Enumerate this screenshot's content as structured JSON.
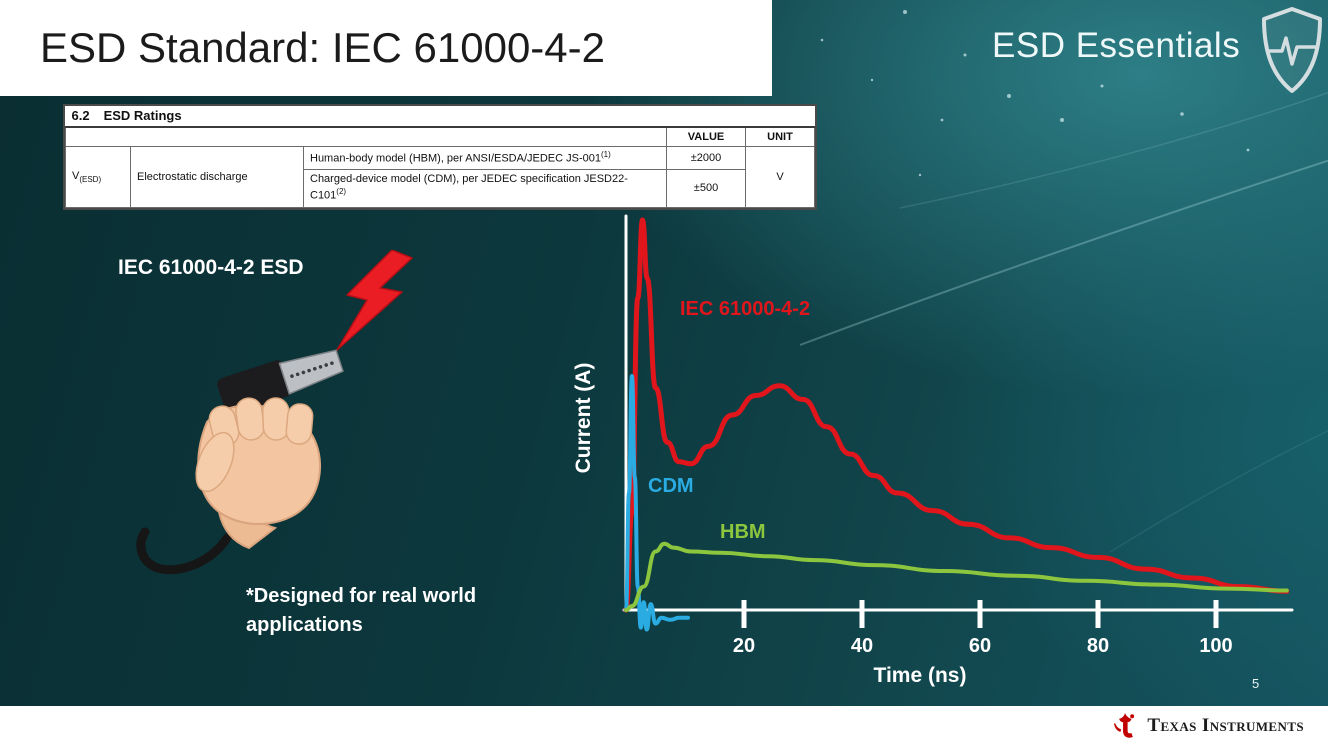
{
  "slide": {
    "title": "ESD Standard: IEC 61000-4-2",
    "brand": "ESD Essentials",
    "page_number": "5",
    "footer_brand": "Texas Instruments"
  },
  "icons": {
    "shield": "shield-pulse-icon",
    "lightning": "lightning-bolt-icon",
    "ti_bug": "ti-logo-icon"
  },
  "colors": {
    "slide_bg_teal": "#11464c",
    "iec_red": "#e0161c",
    "cdm_blue": "#2aace2",
    "hbm_green": "#8cc63e",
    "ti_red": "#c10000"
  },
  "ratings_table": {
    "section_number": "6.2",
    "section_title": "ESD Ratings",
    "value_header": "VALUE",
    "unit_header": "UNIT",
    "symbol": "V",
    "symbol_subscript": "(ESD)",
    "parameter": "Electrostatic discharge",
    "unit": "V",
    "rows": [
      {
        "description": "Human-body model (HBM), per ANSI/ESDA/JEDEC JS-001",
        "sup": "(1)",
        "value": "±2000"
      },
      {
        "description": "Charged-device model (CDM), per JEDEC specification JESD22-C101",
        "sup": "(2)",
        "value": "±500"
      }
    ]
  },
  "left_panel": {
    "illustration_label": "IEC 61000-4-2 ESD",
    "caption": "*Designed for real world applications"
  },
  "chart_data": {
    "type": "line",
    "title": "",
    "xlabel": "Time (ns)",
    "ylabel": "Current (A)",
    "xlim": [
      0,
      112
    ],
    "x_ticks": [
      20,
      40,
      60,
      80,
      100
    ],
    "y_axis_tick_labels": false,
    "grid": false,
    "legend": "inline-labels",
    "series": [
      {
        "name": "IEC 61000-4-2",
        "color": "#e0161c",
        "points": [
          [
            0,
            0
          ],
          [
            1,
            0.25
          ],
          [
            2,
            0.8
          ],
          [
            2.8,
            1.0
          ],
          [
            3.6,
            0.85
          ],
          [
            5,
            0.57
          ],
          [
            7,
            0.43
          ],
          [
            9,
            0.38
          ],
          [
            11,
            0.375
          ],
          [
            14,
            0.42
          ],
          [
            18,
            0.5
          ],
          [
            22,
            0.55
          ],
          [
            26,
            0.575
          ],
          [
            30,
            0.54
          ],
          [
            34,
            0.47
          ],
          [
            38,
            0.4
          ],
          [
            42,
            0.345
          ],
          [
            46,
            0.3
          ],
          [
            52,
            0.255
          ],
          [
            58,
            0.22
          ],
          [
            65,
            0.185
          ],
          [
            72,
            0.16
          ],
          [
            80,
            0.135
          ],
          [
            88,
            0.105
          ],
          [
            96,
            0.082
          ],
          [
            104,
            0.06
          ],
          [
            112,
            0.048
          ]
        ]
      },
      {
        "name": "CDM",
        "color": "#2aace2",
        "points": [
          [
            0,
            0
          ],
          [
            0.5,
            0.3
          ],
          [
            1,
            0.6
          ],
          [
            1.5,
            0.34
          ],
          [
            2,
            0.06
          ],
          [
            2.5,
            -0.045
          ],
          [
            3,
            0.02
          ],
          [
            3.5,
            -0.05
          ],
          [
            4.2,
            0.015
          ],
          [
            5,
            -0.035
          ],
          [
            6,
            -0.02
          ],
          [
            7.5,
            -0.025
          ],
          [
            9,
            -0.02
          ],
          [
            10.5,
            -0.02
          ]
        ]
      },
      {
        "name": "HBM",
        "color": "#8cc63e",
        "points": [
          [
            0,
            0
          ],
          [
            1,
            0.01
          ],
          [
            3,
            0.06
          ],
          [
            5,
            0.15
          ],
          [
            6.5,
            0.17
          ],
          [
            8,
            0.16
          ],
          [
            11,
            0.15
          ],
          [
            16,
            0.147
          ],
          [
            24,
            0.138
          ],
          [
            32,
            0.128
          ],
          [
            42,
            0.115
          ],
          [
            54,
            0.1
          ],
          [
            66,
            0.088
          ],
          [
            78,
            0.075
          ],
          [
            90,
            0.065
          ],
          [
            102,
            0.055
          ],
          [
            112,
            0.05
          ]
        ]
      }
    ]
  }
}
